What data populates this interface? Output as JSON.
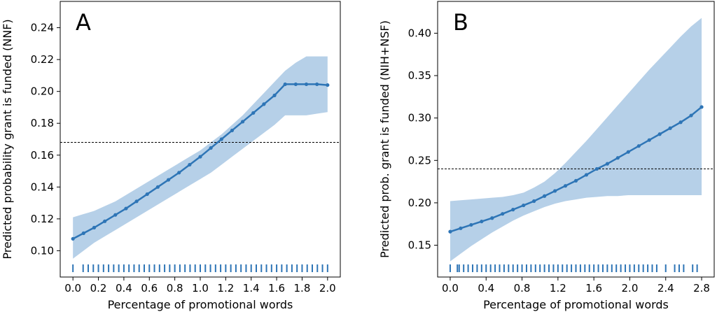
{
  "chart_data": [
    {
      "type": "line",
      "panel_label": "A",
      "xlabel": "Percentage of promotional words",
      "ylabel": "Predicted probability grant is funded (NNF)",
      "xlim": [
        -0.1,
        2.1
      ],
      "ylim": [
        0.0835,
        0.2565
      ],
      "xticks": [
        0.0,
        0.2,
        0.4,
        0.6,
        0.8,
        1.0,
        1.2,
        1.4,
        1.6,
        1.8,
        2.0
      ],
      "xtick_labels": [
        "0.0",
        "0.2",
        "0.4",
        "0.6",
        "0.8",
        "1.0",
        "1.2",
        "1.4",
        "1.6",
        "1.8",
        "2.0"
      ],
      "yticks": [
        0.1,
        0.12,
        0.14,
        0.16,
        0.18,
        0.2,
        0.22,
        0.24
      ],
      "ytick_labels": [
        "0.10",
        "0.12",
        "0.14",
        "0.16",
        "0.18",
        "0.20",
        "0.22",
        "0.24"
      ],
      "reference_line_y": 0.168,
      "grid": false,
      "line_color": "#2e75b6",
      "band_color": "#b6d0e8",
      "series": [
        {
          "x": [
            0.0,
            0.0833,
            0.1667,
            0.25,
            0.3333,
            0.4167,
            0.5,
            0.5833,
            0.6667,
            0.75,
            0.8333,
            0.9167,
            1.0,
            1.0833,
            1.1667,
            1.25,
            1.3333,
            1.4167,
            1.5,
            1.5833,
            1.6667,
            1.75,
            1.8333,
            1.9167,
            2.0
          ],
          "y": [
            0.1075,
            0.111,
            0.1145,
            0.1185,
            0.1225,
            0.1265,
            0.131,
            0.1355,
            0.14,
            0.1445,
            0.149,
            0.154,
            0.159,
            0.1645,
            0.17,
            0.1755,
            0.181,
            0.1865,
            0.192,
            0.1975,
            0.2045,
            0.2045,
            0.2045,
            0.2045,
            0.204
          ],
          "ci_lower": [
            0.095,
            0.1,
            0.105,
            0.109,
            0.113,
            0.117,
            0.121,
            0.125,
            0.129,
            0.133,
            0.137,
            0.141,
            0.145,
            0.149,
            0.154,
            0.159,
            0.164,
            0.169,
            0.174,
            0.179,
            0.185,
            0.185,
            0.185,
            0.186,
            0.187
          ],
          "ci_upper": [
            0.121,
            0.123,
            0.125,
            0.128,
            0.131,
            0.135,
            0.139,
            0.143,
            0.147,
            0.151,
            0.155,
            0.159,
            0.163,
            0.168,
            0.173,
            0.179,
            0.185,
            0.192,
            0.199,
            0.206,
            0.213,
            0.218,
            0.222,
            0.222,
            0.222
          ]
        }
      ],
      "rug_x": [
        0.0,
        0.08,
        0.12,
        0.16,
        0.2,
        0.24,
        0.28,
        0.32,
        0.36,
        0.4,
        0.44,
        0.48,
        0.52,
        0.56,
        0.6,
        0.64,
        0.68,
        0.72,
        0.76,
        0.8,
        0.84,
        0.88,
        0.92,
        0.96,
        1.0,
        1.04,
        1.08,
        1.12,
        1.16,
        1.2,
        1.24,
        1.28,
        1.32,
        1.36,
        1.4,
        1.44,
        1.48,
        1.52,
        1.56,
        1.6,
        1.64,
        1.68,
        1.72,
        1.76,
        1.8,
        1.84,
        1.88,
        1.92,
        1.96,
        2.0
      ]
    },
    {
      "type": "line",
      "panel_label": "B",
      "xlabel": "Percentage of promotional words",
      "ylabel": "Predicted prob. grant is funded (NIH+NSF)",
      "xlim": [
        -0.14,
        2.94
      ],
      "ylim": [
        0.1125,
        0.4375
      ],
      "xticks": [
        0.0,
        0.4,
        0.8,
        1.2,
        1.6,
        2.0,
        2.4,
        2.8
      ],
      "xtick_labels": [
        "0.0",
        "0.4",
        "0.8",
        "1.2",
        "1.6",
        "2.0",
        "2.4",
        "2.8"
      ],
      "yticks": [
        0.15,
        0.2,
        0.25,
        0.3,
        0.35,
        0.4
      ],
      "ytick_labels": [
        "0.15",
        "0.20",
        "0.25",
        "0.30",
        "0.35",
        "0.40"
      ],
      "reference_line_y": 0.24,
      "grid": false,
      "line_color": "#2e75b6",
      "band_color": "#b6d0e8",
      "series": [
        {
          "x": [
            0.0,
            0.1167,
            0.2333,
            0.35,
            0.4667,
            0.5833,
            0.7,
            0.8167,
            0.9333,
            1.05,
            1.1667,
            1.2833,
            1.4,
            1.5167,
            1.6333,
            1.75,
            1.8667,
            1.9833,
            2.1,
            2.2167,
            2.3333,
            2.45,
            2.5667,
            2.6833,
            2.8
          ],
          "y": [
            0.166,
            0.17,
            0.174,
            0.178,
            0.182,
            0.187,
            0.192,
            0.197,
            0.202,
            0.208,
            0.214,
            0.22,
            0.226,
            0.233,
            0.24,
            0.246,
            0.253,
            0.26,
            0.267,
            0.274,
            0.281,
            0.288,
            0.295,
            0.303,
            0.313
          ],
          "ci_lower": [
            0.131,
            0.14,
            0.149,
            0.157,
            0.165,
            0.172,
            0.179,
            0.185,
            0.19,
            0.195,
            0.199,
            0.202,
            0.204,
            0.206,
            0.207,
            0.208,
            0.208,
            0.209,
            0.209,
            0.209,
            0.209,
            0.209,
            0.209,
            0.209,
            0.209
          ],
          "ci_upper": [
            0.202,
            0.203,
            0.204,
            0.205,
            0.206,
            0.207,
            0.209,
            0.212,
            0.218,
            0.225,
            0.235,
            0.247,
            0.26,
            0.273,
            0.287,
            0.301,
            0.315,
            0.329,
            0.343,
            0.357,
            0.37,
            0.383,
            0.396,
            0.408,
            0.418
          ]
        }
      ],
      "rug_x": [
        0.0,
        0.08,
        0.1,
        0.15,
        0.2,
        0.25,
        0.3,
        0.35,
        0.4,
        0.45,
        0.5,
        0.55,
        0.6,
        0.65,
        0.7,
        0.75,
        0.8,
        0.85,
        0.9,
        0.95,
        1.0,
        1.05,
        1.1,
        1.15,
        1.2,
        1.25,
        1.3,
        1.35,
        1.4,
        1.45,
        1.5,
        1.55,
        1.6,
        1.65,
        1.7,
        1.75,
        1.8,
        1.85,
        1.9,
        1.95,
        2.0,
        2.05,
        2.1,
        2.15,
        2.2,
        2.25,
        2.3,
        2.4,
        2.5,
        2.55,
        2.6,
        2.7,
        2.75
      ]
    }
  ]
}
